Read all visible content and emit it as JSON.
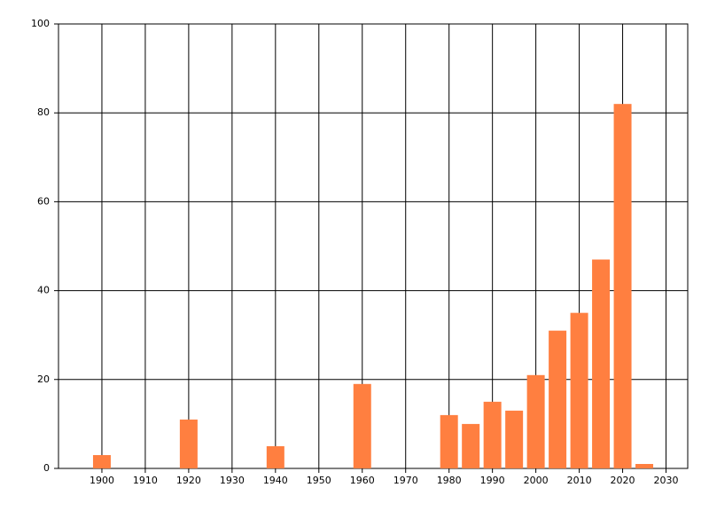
{
  "chart_data": {
    "type": "bar",
    "x": [
      1900,
      1920,
      1940,
      1960,
      1980,
      1985,
      1990,
      1995,
      2000,
      2005,
      2010,
      2015,
      2020,
      2025
    ],
    "values": [
      3,
      11,
      5,
      19,
      12,
      10,
      15,
      13,
      21,
      31,
      35,
      47,
      82,
      1
    ],
    "color": "#ff7f40",
    "xlim": [
      1890,
      2035
    ],
    "xticks": [
      1900,
      1910,
      1920,
      1930,
      1940,
      1950,
      1960,
      1970,
      1980,
      1990,
      2000,
      2010,
      2020,
      2030
    ],
    "ylim": [
      0,
      100
    ],
    "yticks": [
      0,
      20,
      40,
      60,
      80,
      100
    ],
    "grid": true
  }
}
